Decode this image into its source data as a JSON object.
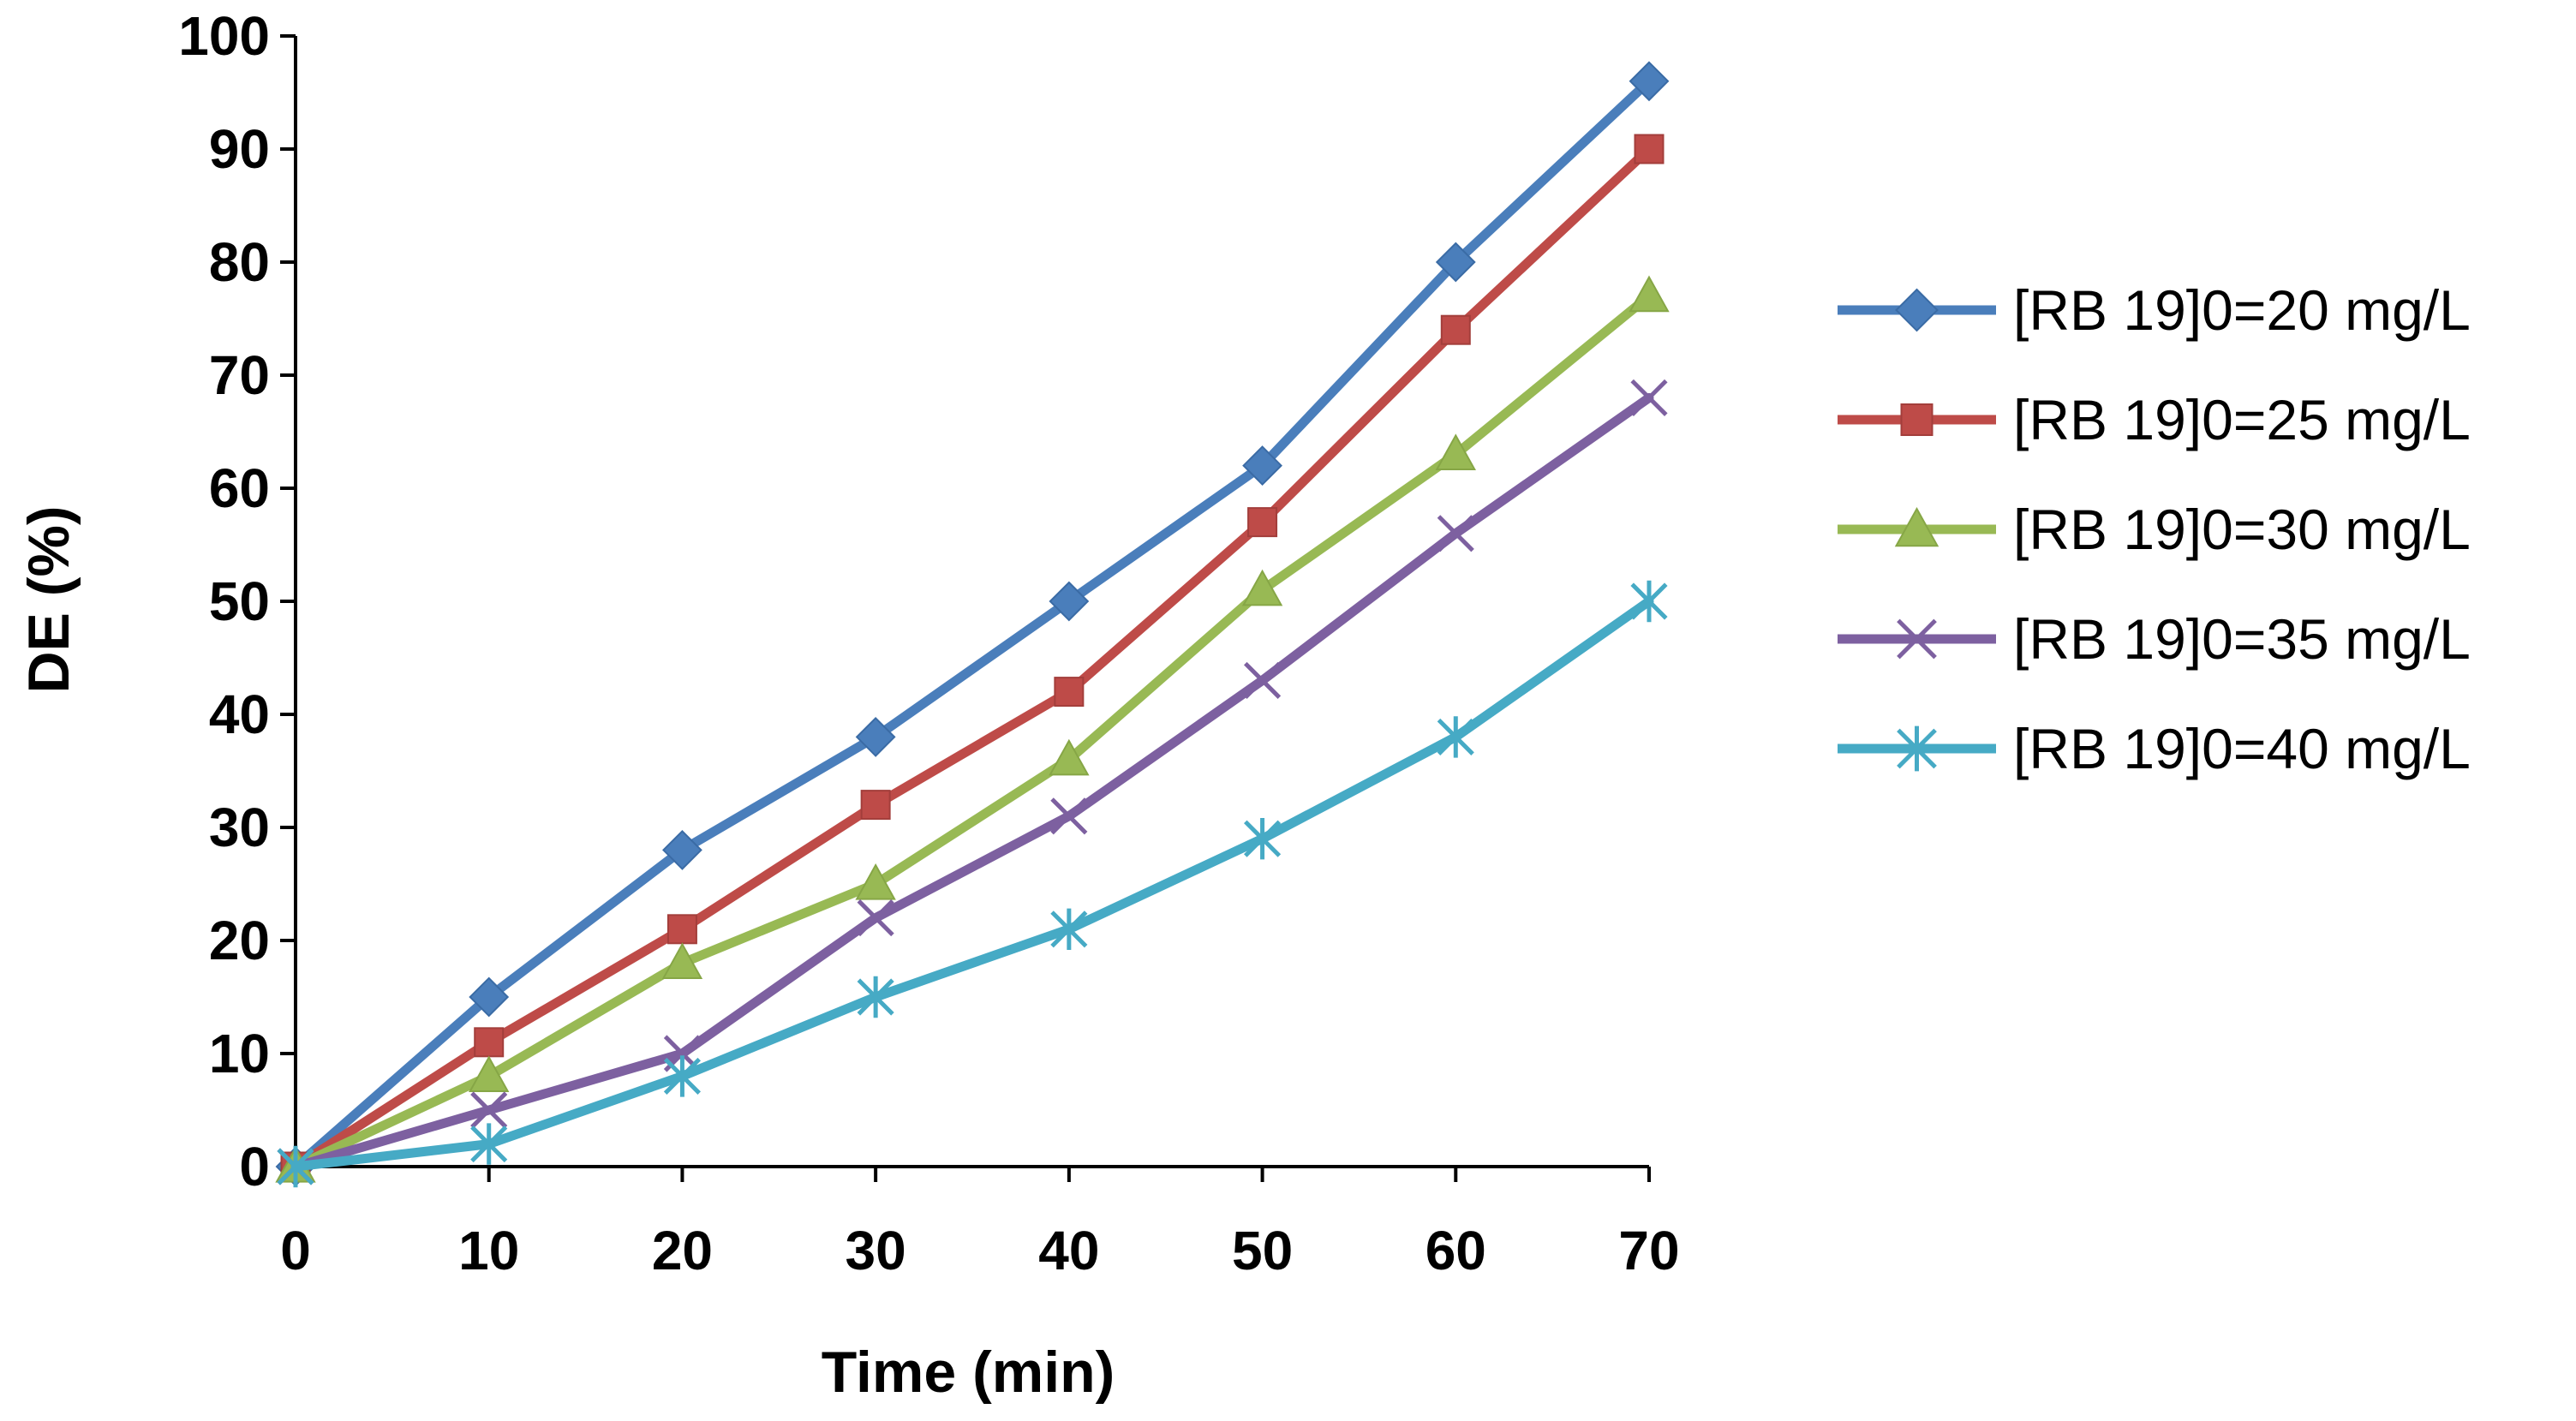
{
  "chart_data": {
    "type": "line",
    "title": "",
    "xlabel": "Time (min)",
    "ylabel": "DE (%)",
    "x": [
      0,
      10,
      20,
      30,
      40,
      50,
      60,
      70
    ],
    "xlim": [
      0,
      70
    ],
    "ylim": [
      0,
      100
    ],
    "xticks": [
      "0",
      "10",
      "20",
      "30",
      "40",
      "50",
      "60",
      "70"
    ],
    "yticks": [
      "0",
      "10",
      "20",
      "30",
      "40",
      "50",
      "60",
      "70",
      "80",
      "90",
      "100"
    ],
    "grid": false,
    "legend_position": "right",
    "series": [
      {
        "name": "[RB 19]0=20 mg/L",
        "color": "#4A7EBB",
        "marker": "diamond",
        "values": [
          0,
          15,
          28,
          38,
          50,
          62,
          80,
          96
        ]
      },
      {
        "name": "[RB 19]0=25 mg/L",
        "color": "#BE4B48",
        "marker": "square",
        "values": [
          0,
          11,
          21,
          32,
          42,
          57,
          74,
          90
        ]
      },
      {
        "name": "[RB 19]0=30 mg/L",
        "color": "#98B954",
        "marker": "triangle",
        "values": [
          0,
          8,
          18,
          25,
          36,
          51,
          63,
          77
        ]
      },
      {
        "name": "[RB 19]0=35 mg/L",
        "color": "#7D60A0",
        "marker": "x",
        "values": [
          0,
          5,
          10,
          22,
          31,
          43,
          56,
          68
        ]
      },
      {
        "name": "[RB 19]0=40 mg/L",
        "color": "#46AAC5",
        "marker": "star",
        "values": [
          0,
          2,
          8,
          15,
          21,
          29,
          38,
          50
        ]
      }
    ]
  }
}
